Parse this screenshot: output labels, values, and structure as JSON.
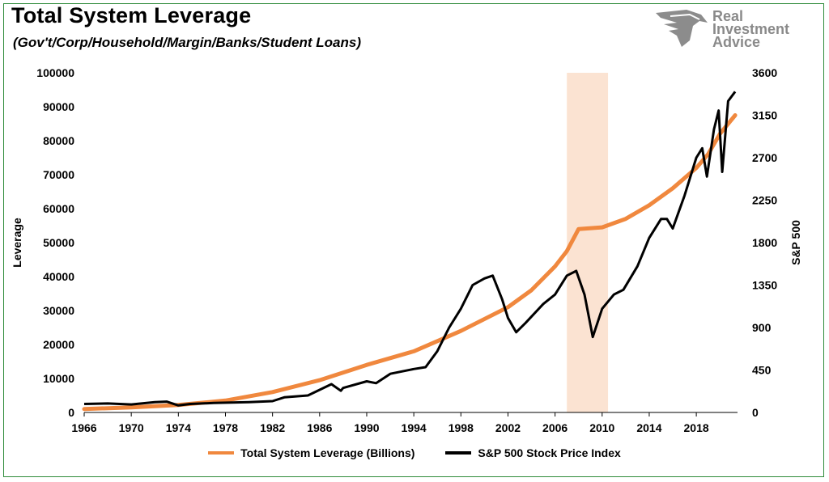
{
  "title": "Total System Leverage",
  "subtitle": "(Gov't/Corp/Household/Margin/Banks/Student Loans)",
  "brand": {
    "line1": "Real",
    "line2": "Investment",
    "line3": "Advice"
  },
  "colors": {
    "leverage": "#f0883e",
    "sp500": "#000000",
    "recession": "#fbe3d2"
  },
  "chart_data": {
    "type": "line",
    "ylabel": "Leverage",
    "y2label": "S&P 500",
    "xlim": [
      1966,
      2021.5
    ],
    "ylim": [
      0,
      100000
    ],
    "y2lim": [
      0,
      3600
    ],
    "xticks": [
      "1966",
      "1970",
      "1974",
      "1978",
      "1982",
      "1986",
      "1990",
      "1994",
      "1998",
      "2002",
      "2006",
      "2010",
      "2014",
      "2018"
    ],
    "yticks": [
      "100000",
      "90000",
      "80000",
      "70000",
      "60000",
      "50000",
      "40000",
      "30000",
      "20000",
      "10000",
      "0"
    ],
    "y2ticks": [
      "3600",
      "3150",
      "2700",
      "2250",
      "1800",
      "1350",
      "900",
      "450",
      "0"
    ],
    "shaded_region": [
      2007.0,
      2010.5
    ],
    "series": [
      {
        "name": "Total System Leverage (Billions)",
        "axis": "left",
        "x": [
          1966,
          1970,
          1974,
          1978,
          1982,
          1986,
          1990,
          1994,
          1998,
          2002,
          2004,
          2006,
          2007,
          2008,
          2010,
          2012,
          2014,
          2016,
          2018,
          2019,
          2020,
          2021.3
        ],
        "y": [
          1000,
          1500,
          2200,
          3500,
          6000,
          9500,
          14000,
          18000,
          24000,
          31000,
          36000,
          43000,
          47500,
          54000,
          54500,
          57000,
          61000,
          66000,
          72000,
          76000,
          82000,
          87500
        ]
      },
      {
        "name": "S&P 500 Stock Price Index",
        "axis": "right",
        "x": [
          1966,
          1968,
          1970,
          1972,
          1973,
          1974,
          1975,
          1977,
          1980,
          1982,
          1983,
          1985,
          1987,
          1987.8,
          1988,
          1990,
          1990.8,
          1992,
          1994,
          1995,
          1996,
          1997,
          1998,
          1999,
          2000,
          2000.7,
          2001.5,
          2002,
          2002.7,
          2003.5,
          2005,
          2006,
          2007,
          2007.8,
          2008.5,
          2009.2,
          2010,
          2011,
          2011.8,
          2013,
          2014,
          2015,
          2015.5,
          2016,
          2017,
          2018,
          2018.5,
          2018.9,
          2019.5,
          2019.9,
          2020.2,
          2020.7,
          2021.3
        ],
        "y": [
          90,
          95,
          85,
          110,
          115,
          75,
          90,
          100,
          110,
          120,
          160,
          180,
          300,
          230,
          260,
          330,
          310,
          410,
          460,
          480,
          650,
          900,
          1100,
          1350,
          1420,
          1450,
          1200,
          1000,
          850,
          950,
          1150,
          1250,
          1450,
          1500,
          1250,
          800,
          1100,
          1250,
          1300,
          1550,
          1850,
          2050,
          2050,
          1950,
          2300,
          2700,
          2800,
          2500,
          3000,
          3200,
          2550,
          3300,
          3400
        ]
      }
    ]
  }
}
